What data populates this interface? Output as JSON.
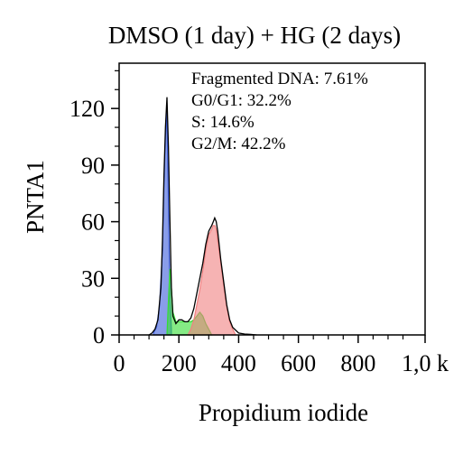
{
  "chart_data": {
    "type": "area",
    "title": "DMSO (1 day) + HG (2 days)",
    "xlabel": "Propidium iodide",
    "ylabel": "PNTA1",
    "xlim": [
      0,
      1024
    ],
    "ylim": [
      0,
      144
    ],
    "x_ticks": [
      0,
      200,
      400,
      600,
      800,
      1024
    ],
    "x_tick_labels": [
      "0",
      "200",
      "400",
      "600",
      "800",
      "1,0 k"
    ],
    "y_ticks": [
      0,
      30,
      60,
      90,
      120
    ],
    "y_tick_labels": [
      "0",
      "30",
      "60",
      "90",
      "120"
    ],
    "grid": false,
    "annotations": [
      "Fragmented DNA: 7.61%",
      "G0/G1: 32.2%",
      "S: 14.6%",
      "G2/M: 42.2%"
    ],
    "histogram": {
      "x": [
        100,
        110,
        120,
        130,
        140,
        145,
        150,
        155,
        160,
        165,
        170,
        175,
        180,
        190,
        200,
        210,
        220,
        230,
        240,
        250,
        260,
        270,
        280,
        290,
        300,
        310,
        315,
        320,
        325,
        330,
        340,
        350,
        360,
        370,
        380,
        400,
        420,
        440,
        460
      ],
      "y": [
        0,
        1,
        3,
        8,
        25,
        50,
        85,
        110,
        126,
        100,
        60,
        25,
        10,
        6,
        8,
        8,
        7,
        7,
        9,
        14,
        22,
        30,
        38,
        48,
        55,
        58,
        60,
        62,
        60,
        55,
        40,
        28,
        16,
        8,
        4,
        1,
        0.5,
        0.3,
        0
      ]
    },
    "series": [
      {
        "color": "#3b5bdb",
        "x": [
          115,
          125,
          135,
          145,
          150,
          155,
          160,
          165,
          170,
          175
        ],
        "values": [
          1,
          4,
          15,
          45,
          80,
          105,
          118,
          70,
          20,
          3
        ]
      },
      {
        "color": "#33dd33",
        "x": [
          160,
          165,
          170,
          175,
          180,
          190,
          200,
          210,
          220,
          230,
          240,
          250,
          260,
          270,
          280,
          290,
          300,
          310
        ],
        "values": [
          0,
          18,
          35,
          25,
          12,
          7,
          7,
          7,
          7,
          7,
          7,
          8,
          10,
          12,
          10,
          6,
          3,
          0
        ]
      },
      {
        "color": "#f08080",
        "x": [
          230,
          240,
          250,
          260,
          270,
          280,
          290,
          300,
          310,
          315,
          320,
          325,
          330,
          340,
          350,
          360,
          370,
          380,
          390
        ],
        "values": [
          0,
          3,
          8,
          16,
          24,
          34,
          45,
          53,
          56,
          58,
          58,
          56,
          50,
          38,
          26,
          15,
          7,
          3,
          0
        ]
      }
    ]
  }
}
